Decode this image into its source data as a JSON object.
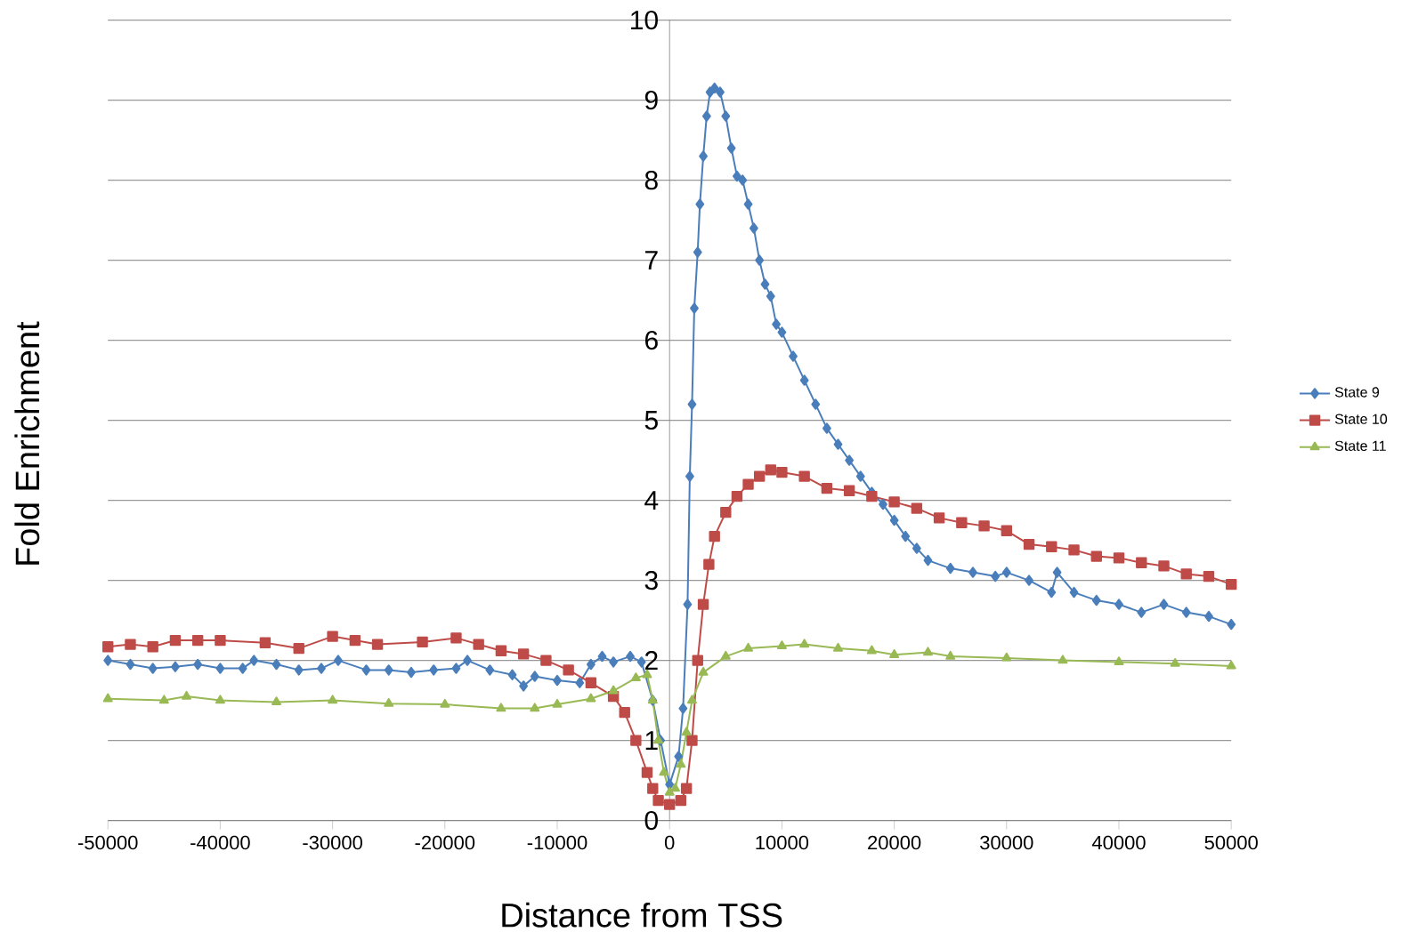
{
  "chart_data": {
    "type": "line",
    "xlabel": "Distance from TSS",
    "ylabel": "Fold Enrichment",
    "xlim": [
      -50000,
      50000
    ],
    "ylim": [
      0,
      10
    ],
    "xticks": [
      -50000,
      -40000,
      -30000,
      -20000,
      -10000,
      0,
      10000,
      20000,
      30000,
      40000,
      50000
    ],
    "yticks": [
      0,
      1,
      2,
      3,
      4,
      5,
      6,
      7,
      8,
      9,
      10
    ],
    "grid": "y",
    "legend": "right",
    "series": [
      {
        "name": "State 9",
        "color": "#4a7ebb",
        "marker": "diamond",
        "x": [
          -50000,
          -48000,
          -46000,
          -44000,
          -42000,
          -40000,
          -38000,
          -37000,
          -35000,
          -33000,
          -31000,
          -29500,
          -27000,
          -25000,
          -23000,
          -21000,
          -19000,
          -18000,
          -16000,
          -14000,
          -13000,
          -12000,
          -10000,
          -8000,
          -7000,
          -6000,
          -5000,
          -3500,
          -2500,
          -1500,
          -800,
          0,
          800,
          1200,
          1600,
          1800,
          2000,
          2200,
          2500,
          2700,
          3000,
          3300,
          3600,
          4000,
          4500,
          5000,
          5500,
          6000,
          6500,
          7000,
          7500,
          8000,
          8500,
          9000,
          9500,
          10000,
          11000,
          12000,
          13000,
          14000,
          15000,
          16000,
          17000,
          18000,
          19000,
          20000,
          21000,
          22000,
          23000,
          25000,
          27000,
          29000,
          30000,
          32000,
          34000,
          34500,
          36000,
          38000,
          40000,
          42000,
          44000,
          46000,
          48000,
          50000
        ],
        "values": [
          2.0,
          1.95,
          1.9,
          1.92,
          1.95,
          1.9,
          1.9,
          2.0,
          1.95,
          1.88,
          1.9,
          2.0,
          1.88,
          1.88,
          1.85,
          1.88,
          1.9,
          2.0,
          1.88,
          1.82,
          1.68,
          1.8,
          1.75,
          1.72,
          1.95,
          2.05,
          1.98,
          2.05,
          1.98,
          1.5,
          1.0,
          0.45,
          0.8,
          1.4,
          2.7,
          4.3,
          5.2,
          6.4,
          7.1,
          7.7,
          8.3,
          8.8,
          9.1,
          9.15,
          9.1,
          8.8,
          8.4,
          8.05,
          8.0,
          7.7,
          7.4,
          7.0,
          6.7,
          6.55,
          6.2,
          6.1,
          5.8,
          5.5,
          5.2,
          4.9,
          4.7,
          4.5,
          4.3,
          4.1,
          3.95,
          3.75,
          3.55,
          3.4,
          3.25,
          3.15,
          3.1,
          3.05,
          3.1,
          3.0,
          2.85,
          3.1,
          2.85,
          2.75,
          2.7,
          2.6,
          2.7,
          2.6,
          2.55,
          2.45
        ]
      },
      {
        "name": "State 10",
        "color": "#be4b48",
        "marker": "square",
        "x": [
          -50000,
          -48000,
          -46000,
          -44000,
          -42000,
          -40000,
          -36000,
          -33000,
          -30000,
          -28000,
          -26000,
          -22000,
          -19000,
          -17000,
          -15000,
          -13000,
          -11000,
          -9000,
          -7000,
          -5000,
          -4000,
          -3000,
          -2000,
          -1500,
          -1000,
          0,
          1000,
          1500,
          2000,
          2500,
          3000,
          3500,
          4000,
          5000,
          6000,
          7000,
          8000,
          9000,
          10000,
          12000,
          14000,
          16000,
          18000,
          20000,
          22000,
          24000,
          26000,
          28000,
          30000,
          32000,
          34000,
          36000,
          38000,
          40000,
          42000,
          44000,
          46000,
          48000,
          50000
        ],
        "values": [
          2.17,
          2.2,
          2.17,
          2.25,
          2.25,
          2.25,
          2.22,
          2.15,
          2.3,
          2.25,
          2.2,
          2.23,
          2.28,
          2.2,
          2.12,
          2.08,
          2.0,
          1.88,
          1.72,
          1.55,
          1.35,
          1.0,
          0.6,
          0.4,
          0.25,
          0.2,
          0.25,
          0.4,
          1.0,
          2.0,
          2.7,
          3.2,
          3.55,
          3.85,
          4.05,
          4.2,
          4.3,
          4.38,
          4.35,
          4.3,
          4.15,
          4.12,
          4.05,
          3.98,
          3.9,
          3.78,
          3.72,
          3.68,
          3.62,
          3.45,
          3.42,
          3.38,
          3.3,
          3.28,
          3.22,
          3.18,
          3.08,
          3.05,
          2.95
        ]
      },
      {
        "name": "State 11",
        "color": "#98b954",
        "marker": "triangle",
        "x": [
          -50000,
          -45000,
          -43000,
          -40000,
          -35000,
          -30000,
          -25000,
          -20000,
          -15000,
          -12000,
          -10000,
          -7000,
          -5000,
          -3000,
          -2000,
          -1500,
          -1000,
          -500,
          0,
          500,
          1000,
          1500,
          2000,
          3000,
          5000,
          7000,
          10000,
          12000,
          15000,
          18000,
          20000,
          23000,
          25000,
          30000,
          35000,
          40000,
          45000,
          50000
        ],
        "values": [
          1.52,
          1.5,
          1.55,
          1.5,
          1.48,
          1.5,
          1.46,
          1.45,
          1.4,
          1.4,
          1.45,
          1.52,
          1.62,
          1.78,
          1.82,
          1.5,
          1.0,
          0.6,
          0.35,
          0.4,
          0.7,
          1.1,
          1.5,
          1.85,
          2.05,
          2.15,
          2.18,
          2.2,
          2.15,
          2.12,
          2.07,
          2.1,
          2.05,
          2.03,
          2.0,
          1.98,
          1.96,
          1.93
        ]
      }
    ]
  }
}
